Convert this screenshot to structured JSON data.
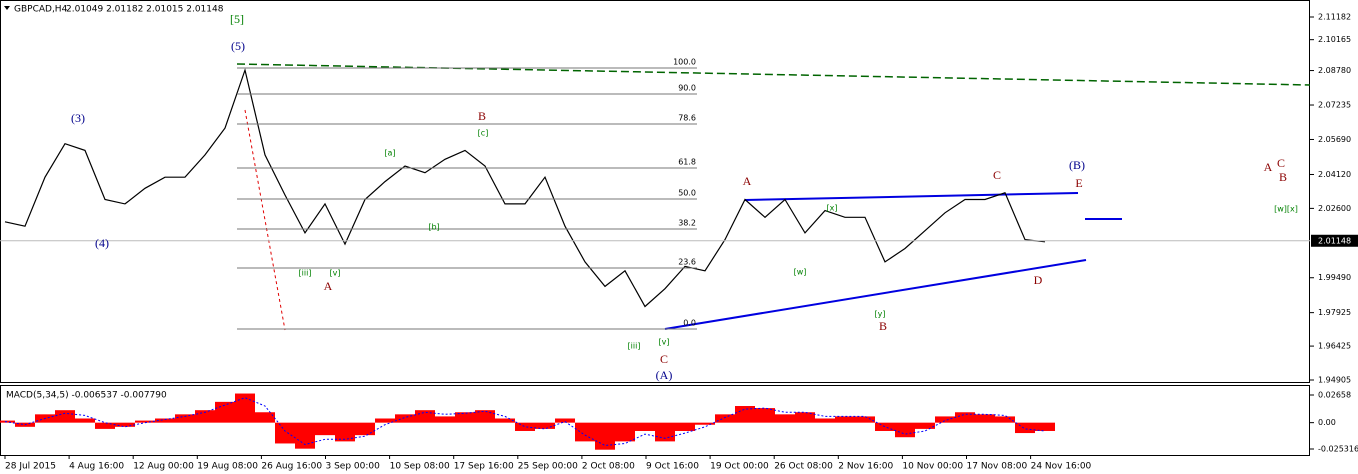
{
  "chart_data": [
    {
      "type": "line",
      "title": "GBPCAD,H4",
      "ohlc_text": "2.01049 2.01182 2.01015 2.01148",
      "series": [
        {
          "name": "GBPCAD",
          "color": "#000000",
          "values": [
            2.02,
            2.018,
            2.04,
            2.055,
            2.052,
            2.03,
            2.028,
            2.035,
            2.04,
            2.04,
            2.05,
            2.062,
            2.088,
            2.05,
            2.032,
            2.015,
            2.028,
            2.01,
            2.03,
            2.038,
            2.045,
            2.042,
            2.048,
            2.052,
            2.045,
            2.028,
            2.028,
            2.04,
            2.018,
            2.002,
            1.991,
            1.998,
            1.982,
            1.99,
            2.0,
            1.998,
            2.012,
            2.03,
            2.022,
            2.03,
            2.015,
            2.025,
            2.022,
            2.022,
            2.002,
            2.008,
            2.016,
            2.024,
            2.03,
            2.03,
            2.033,
            2.012,
            2.011
          ]
        }
      ],
      "ylim": [
        1.9477,
        2.11944
      ],
      "yticks": [
        2.11182,
        2.10165,
        {
          "value": 2.0878,
          "label": "2.08780"
        },
        2.07235,
        {
          "value": 2.0569,
          "label": "2.05690"
        },
        {
          "value": 2.0412,
          "label": "2.04120"
        },
        {
          "value": 2.026,
          "label": "2.02600"
        },
        {
          "value": 1.9949,
          "label": "1.99490"
        },
        1.97925,
        1.96425,
        1.94905
      ],
      "current_price": 2.01148,
      "xticks": [
        "28 Jul 2015",
        "4 Aug 16:00",
        "12 Aug 00:00",
        "19 Aug 08:00",
        "26 Aug 16:00",
        "3 Sep 00:00",
        "10 Sep 08:00",
        "17 Sep 16:00",
        "25 Sep 00:00",
        "2 Oct 08:00",
        "9 Oct 16:00",
        "19 Oct 00:00",
        "26 Oct 08:00",
        "2 Nov 16:00",
        "10 Nov 00:00",
        "17 Nov 08:00",
        "24 Nov 16:00"
      ],
      "fib_labels": [
        "100.0",
        "90.0",
        "78.6",
        "61.8",
        "50.0",
        "38.2",
        "23.6",
        "0.0"
      ],
      "annotations": [
        {
          "text": "[5]",
          "color": "#008000"
        },
        {
          "text": "(5)",
          "color": "#00008b"
        },
        {
          "text": "(3)",
          "color": "#00008b"
        },
        {
          "text": "(4)",
          "color": "#00008b"
        },
        {
          "text": "A",
          "color": "#8b0000"
        },
        {
          "text": "B",
          "color": "#8b0000"
        },
        {
          "text": "C",
          "color": "#8b0000"
        },
        {
          "text": "(A)",
          "color": "#00008b"
        },
        {
          "text": "A",
          "color": "#8b0000"
        },
        {
          "text": "B",
          "color": "#8b0000"
        },
        {
          "text": "C",
          "color": "#8b0000"
        },
        {
          "text": "D",
          "color": "#8b0000"
        },
        {
          "text": "E",
          "color": "#8b0000"
        },
        {
          "text": "(B)",
          "color": "#00008b"
        },
        {
          "text": "A",
          "color": "#8b0000"
        },
        {
          "text": "C",
          "color": "#8b0000"
        },
        {
          "text": "B",
          "color": "#8b0000"
        },
        {
          "text": "[w][x]",
          "color": "#008000"
        },
        {
          "text": "[iii]",
          "color": "#008000"
        },
        {
          "text": "[v]",
          "color": "#008000"
        },
        {
          "text": "[a]",
          "color": "#008000"
        },
        {
          "text": "[b]",
          "color": "#008000"
        },
        {
          "text": "[c]",
          "color": "#008000"
        },
        {
          "text": "[iii]",
          "color": "#008000"
        },
        {
          "text": "[v]",
          "color": "#008000"
        },
        {
          "text": "[w]",
          "color": "#008000"
        },
        {
          "text": "[x]",
          "color": "#008000"
        },
        {
          "text": "[y]",
          "color": "#008000"
        }
      ]
    },
    {
      "type": "bar",
      "title": "MACD(5,34,5) -0.006537 -0.007790",
      "series": [
        {
          "name": "MACD",
          "color": "#ff0000",
          "values": [
            0.002,
            -0.004,
            0.008,
            0.012,
            0.004,
            -0.006,
            -0.004,
            0.002,
            0.004,
            0.008,
            0.012,
            0.02,
            0.028,
            0.01,
            -0.02,
            -0.025,
            -0.012,
            -0.018,
            -0.012,
            0.004,
            0.008,
            0.012,
            0.006,
            0.01,
            0.012,
            0.004,
            -0.008,
            -0.006,
            0.004,
            -0.018,
            -0.026,
            -0.018,
            -0.008,
            -0.018,
            -0.008,
            -0.002,
            0.008,
            0.016,
            0.014,
            0.008,
            0.01,
            0.004,
            0.006,
            0.006,
            -0.008,
            -0.014,
            -0.006,
            0.006,
            0.01,
            0.008,
            0.006,
            -0.01,
            -0.008
          ]
        },
        {
          "name": "Signal",
          "color": "#0000ff",
          "values": [
            0.001,
            -0.002,
            0.004,
            0.009,
            0.007,
            0.0,
            -0.004,
            0.0,
            0.003,
            0.006,
            0.01,
            0.017,
            0.024,
            0.016,
            -0.008,
            -0.021,
            -0.016,
            -0.016,
            -0.013,
            -0.002,
            0.005,
            0.01,
            0.008,
            0.009,
            0.011,
            0.006,
            -0.004,
            -0.006,
            0.001,
            -0.012,
            -0.022,
            -0.02,
            -0.011,
            -0.015,
            -0.01,
            -0.004,
            0.005,
            0.013,
            0.014,
            0.01,
            0.01,
            0.006,
            0.006,
            0.006,
            -0.004,
            -0.011,
            -0.008,
            0.002,
            0.008,
            0.008,
            0.007,
            -0.006,
            -0.008
          ]
        }
      ],
      "ylim": [
        -0.03109,
        0.0362
      ],
      "yticks": [
        0.02658,
        {
          "value": 0,
          "label": "0.00"
        },
        -0.025316
      ]
    }
  ]
}
